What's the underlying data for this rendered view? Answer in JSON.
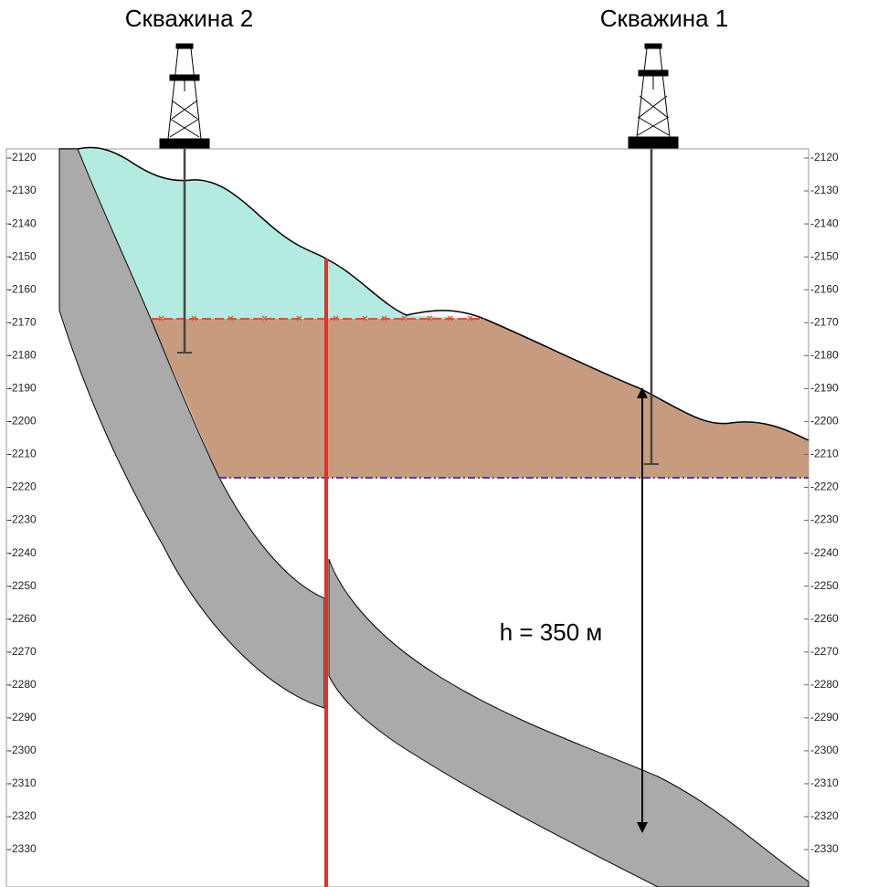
{
  "wells": [
    {
      "label": "Скважина 2"
    },
    {
      "label": "Скважина 1"
    }
  ],
  "annotation": "h = 350 м",
  "left_axis": {
    "ticks": [
      -2120,
      -2130,
      -2140,
      -2150,
      -2160,
      -2170,
      -2180,
      -2190,
      -2200,
      -2210,
      -2220,
      -2230,
      -2240,
      -2250,
      -2260,
      -2270,
      -2280,
      -2290,
      -2300,
      -2310,
      -2320,
      -2330
    ]
  },
  "right_axis": {
    "ticks": [
      -2120,
      -2130,
      -2140,
      -2150,
      -2160,
      -2170,
      -2180,
      -2190,
      -2200,
      -2210,
      -2220,
      -2230,
      -2240,
      -2250,
      -2260,
      -2270,
      -2280,
      -2290,
      -2300,
      -2310,
      -2320,
      -2330
    ]
  }
}
